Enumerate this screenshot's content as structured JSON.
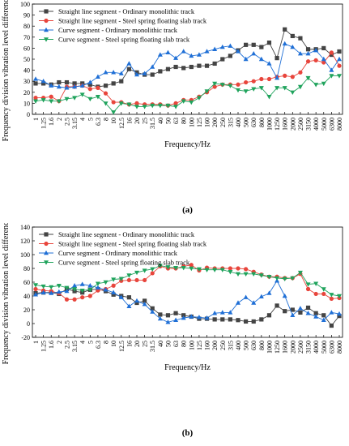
{
  "chart_data": [
    {
      "panel": "(a)",
      "type": "line",
      "xlabel": "Frequency/Hz",
      "ylabel": "Frequency division vibration level difference/dB",
      "ylim": [
        0,
        100
      ],
      "yticks": [
        0,
        10,
        20,
        30,
        40,
        50,
        60,
        70,
        80,
        90,
        100
      ],
      "grid": false,
      "legend_position": "top-left",
      "categories": [
        "1",
        "1.25",
        "1.6",
        "2",
        "2.5",
        "3.15",
        "4",
        "5",
        "6.3",
        "8",
        "10",
        "12.5",
        "16",
        "20",
        "25",
        "31.5",
        "40",
        "50",
        "63",
        "80",
        "100",
        "125",
        "160",
        "200",
        "250",
        "315",
        "400",
        "500",
        "630",
        "800",
        "1000",
        "1250",
        "1600",
        "2000",
        "2500",
        "3150",
        "4000",
        "5000",
        "6300",
        "8000"
      ],
      "series": [
        {
          "name": "Straight line segment - Ordinary monolithic track",
          "color": "#444444",
          "marker": "square",
          "values": [
            28,
            28,
            27,
            29,
            29,
            28,
            28,
            27,
            25,
            26,
            28,
            30,
            41,
            38,
            36,
            36,
            39,
            41,
            43,
            42,
            43,
            44,
            44,
            46,
            50,
            53,
            58,
            63,
            63,
            61,
            65,
            51,
            77,
            71,
            69,
            59,
            59,
            60,
            54,
            57
          ]
        },
        {
          "name": "Straight line segment - Steel spring floating slab track",
          "color": "#e8453c",
          "marker": "circle",
          "values": [
            15,
            15,
            16,
            12,
            25,
            25,
            26,
            23,
            24,
            19,
            11,
            11,
            9,
            10,
            9,
            9,
            9,
            8,
            10,
            13,
            13,
            16,
            20,
            25,
            27,
            27,
            27,
            29,
            30,
            32,
            32,
            34,
            35,
            34,
            38,
            48,
            49,
            47,
            56,
            44
          ]
        },
        {
          "name": "Curve segment - Ordinary monolithic track",
          "color": "#1f6fd6",
          "marker": "triangle",
          "values": [
            32,
            30,
            26,
            25,
            24,
            25,
            26,
            29,
            34,
            38,
            38,
            37,
            46,
            36,
            37,
            43,
            54,
            56,
            51,
            57,
            53,
            54,
            57,
            59,
            61,
            62,
            57,
            50,
            55,
            50,
            46,
            33,
            64,
            61,
            55,
            55,
            58,
            50,
            40,
            50
          ]
        },
        {
          "name": "Curve segment - Steel spring floating slab track",
          "color": "#1fa35c",
          "marker": "triangle-down",
          "values": [
            12,
            13,
            12,
            12,
            14,
            15,
            18,
            14,
            16,
            10,
            2,
            10,
            9,
            7,
            7,
            8,
            8,
            8,
            7,
            12,
            11,
            15,
            21,
            28,
            27,
            26,
            22,
            21,
            23,
            24,
            16,
            24,
            24,
            20,
            25,
            33,
            27,
            28,
            35,
            35
          ]
        }
      ]
    },
    {
      "panel": "(b)",
      "type": "line",
      "xlabel": "Frequency/Hz",
      "ylabel": "Frequency division vibration level difference/dB",
      "ylim": [
        -20,
        140
      ],
      "yticks": [
        -20,
        0,
        20,
        40,
        60,
        80,
        100,
        120,
        140
      ],
      "grid": false,
      "legend_position": "top-left",
      "categories": [
        "1",
        "1.25",
        "1.6",
        "2",
        "2.5",
        "3.15",
        "4",
        "5",
        "6.3",
        "8",
        "10",
        "12.5",
        "16",
        "20",
        "25",
        "31.5",
        "40",
        "50",
        "63",
        "80",
        "100",
        "125",
        "160",
        "200",
        "250",
        "315",
        "400",
        "500",
        "630",
        "800",
        "1000",
        "1250",
        "1600",
        "2000",
        "2500",
        "3150",
        "4000",
        "5000",
        "6300",
        "8000"
      ],
      "series": [
        {
          "name": "Straight line segment - Ordinary monolithic track",
          "color": "#444444",
          "marker": "square",
          "values": [
            44,
            45,
            45,
            43,
            50,
            47,
            45,
            49,
            50,
            47,
            42,
            40,
            38,
            30,
            33,
            22,
            13,
            12,
            15,
            12,
            10,
            7,
            7,
            6,
            6,
            6,
            5,
            3,
            3,
            6,
            12,
            26,
            18,
            20,
            16,
            23,
            15,
            12,
            -3,
            11
          ]
        },
        {
          "name": "Straight line segment - Steel spring floating slab track",
          "color": "#e8453c",
          "marker": "circle",
          "values": [
            50,
            48,
            47,
            44,
            35,
            35,
            38,
            40,
            48,
            50,
            55,
            62,
            63,
            63,
            63,
            73,
            83,
            80,
            80,
            83,
            85,
            77,
            81,
            80,
            80,
            80,
            80,
            79,
            75,
            71,
            68,
            68,
            66,
            66,
            72,
            50,
            43,
            43,
            36,
            37
          ]
        },
        {
          "name": "Curve segment - Ordinary monolithic track",
          "color": "#1f6fd6",
          "marker": "triangle",
          "values": [
            42,
            45,
            44,
            46,
            47,
            55,
            57,
            55,
            52,
            49,
            45,
            38,
            25,
            33,
            28,
            17,
            7,
            2,
            5,
            8,
            10,
            9,
            8,
            15,
            16,
            16,
            30,
            38,
            30,
            39,
            44,
            62,
            40,
            12,
            22,
            15,
            10,
            5,
            16,
            14
          ]
        },
        {
          "name": "Curve segment - Steel spring floating slab track",
          "color": "#1fa35c",
          "marker": "triangle-down",
          "values": [
            56,
            54,
            53,
            55,
            52,
            50,
            48,
            49,
            58,
            60,
            64,
            65,
            70,
            74,
            77,
            79,
            84,
            82,
            81,
            81,
            80,
            79,
            78,
            78,
            78,
            75,
            72,
            72,
            72,
            70,
            68,
            66,
            65,
            66,
            74,
            57,
            58,
            50,
            42,
            40
          ]
        }
      ]
    }
  ]
}
